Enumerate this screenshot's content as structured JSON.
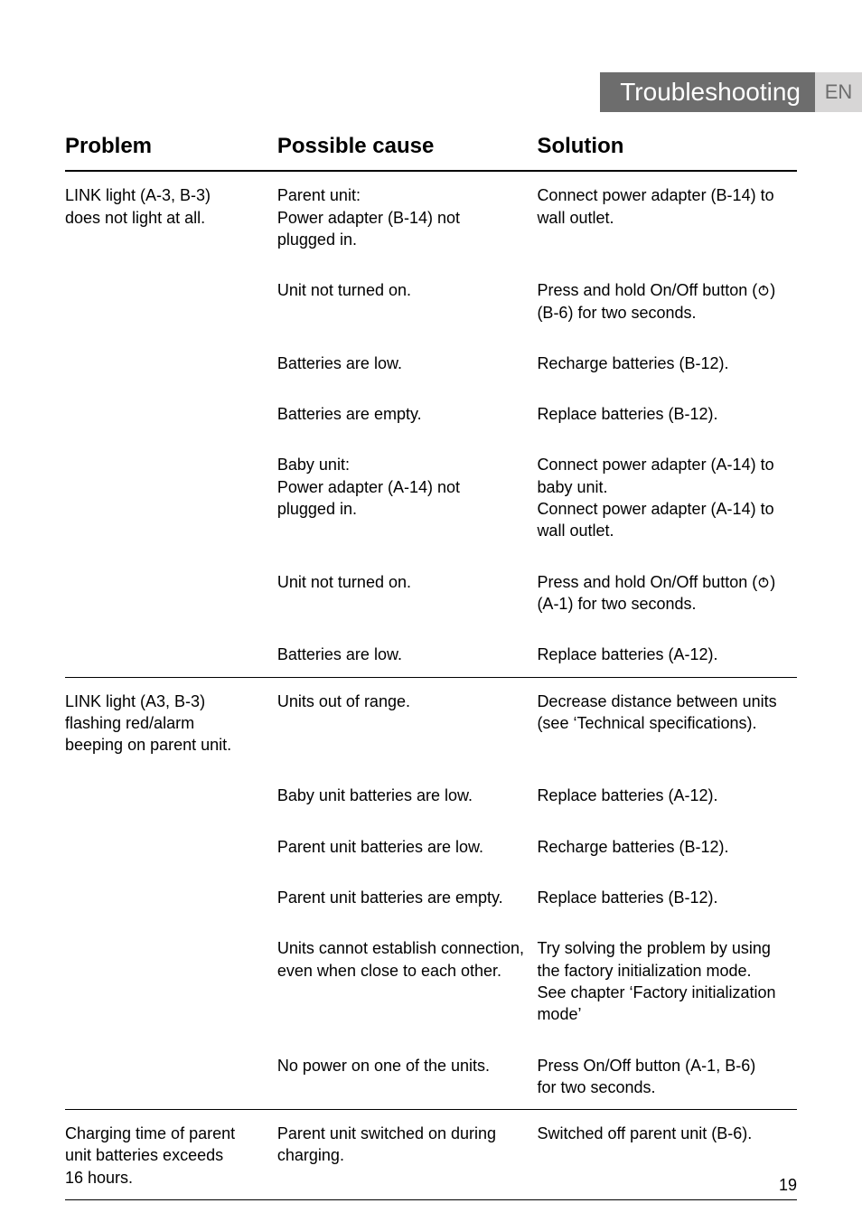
{
  "colors": {
    "tab_bg": "#6d6d6d",
    "tab_text": "#ffffff",
    "lang_bg": "#d7d6d6",
    "lang_text": "#6d6d6d",
    "rule_heavy": "#000000",
    "rule_light": "#000000",
    "body_text": "#000000",
    "page_bg": "#ffffff"
  },
  "fonts": {
    "header_size_pt": 18,
    "body_size_pt": 14,
    "tab_size_pt": 21,
    "lang_size_pt": 16
  },
  "tab_title": "Troubleshooting",
  "lang": "EN",
  "headers": {
    "problem": "Problem",
    "cause": "Possible cause",
    "solution": "Solution"
  },
  "sections": [
    {
      "problem": [
        "LINK light (A-3, B-3)",
        "does not light at all."
      ],
      "rows": [
        {
          "cause": [
            "Parent unit:",
            "Power adapter (B-14) not",
            "plugged in."
          ],
          "solution": [
            "",
            "Connect power adapter (B-14) to",
            "wall outlet."
          ]
        },
        {
          "cause": [
            "Unit not turned on."
          ],
          "solution": [
            "Press and hold On/Off button (⏻)",
            "(B-6) for two seconds."
          ],
          "power_icon_line": 0
        },
        {
          "cause": [
            "Batteries are low."
          ],
          "solution": [
            "Recharge batteries (B-12)."
          ]
        },
        {
          "cause": [
            "Batteries are empty."
          ],
          "solution": [
            "Replace batteries (B-12)."
          ]
        },
        {
          "cause": [
            "Baby unit:",
            "Power adapter (A-14) not",
            "plugged in."
          ],
          "solution": [
            "",
            "Connect power adapter (A-14) to",
            "baby unit.",
            "Connect power adapter (A-14) to",
            "wall outlet."
          ]
        },
        {
          "cause": [
            "Unit not turned on."
          ],
          "solution": [
            "Press and hold On/Off button (⏻)",
            "(A-1) for two seconds."
          ],
          "power_icon_line": 0
        },
        {
          "cause": [
            "Batteries are low."
          ],
          "solution": [
            "Replace batteries (A-12)."
          ]
        }
      ]
    },
    {
      "problem": [
        "LINK light (A3, B-3)",
        "flashing red/alarm",
        "beeping on parent unit."
      ],
      "rows": [
        {
          "cause": [
            "Units out of range."
          ],
          "solution": [
            "Decrease distance between units",
            "(see ‘Technical specifications)."
          ]
        },
        {
          "cause": [
            "Baby unit batteries are low."
          ],
          "solution": [
            "Replace batteries (A-12)."
          ]
        },
        {
          "cause": [
            "Parent unit batteries are low."
          ],
          "solution": [
            "Recharge batteries (B-12)."
          ]
        },
        {
          "cause": [
            "Parent unit batteries are empty."
          ],
          "solution": [
            "Replace batteries (B-12)."
          ]
        },
        {
          "cause": [
            "Units cannot establish connection,",
            "even when close to each other."
          ],
          "solution": [
            "Try solving the problem by using",
            "the factory initialization mode.",
            "See chapter ‘Factory initialization",
            "mode’"
          ]
        },
        {
          "cause": [
            "No power on one of the units."
          ],
          "solution": [
            "Press On/Off button (A-1, B-6)",
            "for two seconds."
          ]
        }
      ]
    },
    {
      "problem": [
        "Charging time of parent",
        "unit batteries exceeds",
        "16 hours."
      ],
      "rows": [
        {
          "cause": [
            "Parent unit switched on during",
            "charging."
          ],
          "solution": [
            "Switched off parent unit (B-6)."
          ]
        }
      ]
    }
  ],
  "page_number": "19"
}
